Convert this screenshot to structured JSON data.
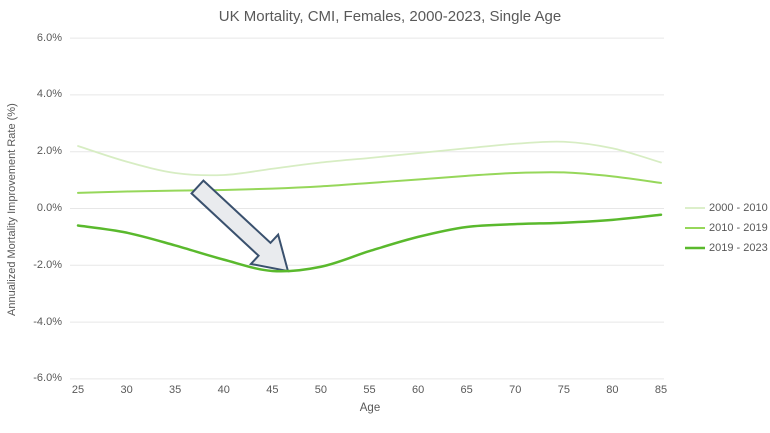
{
  "chart_data": {
    "type": "line",
    "title": "UK Mortality, CMI, Females, 2000-2023, Single Age",
    "xlabel": "Age",
    "ylabel": "Annualized Mortality Improvement Rate (%)",
    "x": [
      25,
      30,
      35,
      40,
      45,
      50,
      55,
      60,
      65,
      70,
      75,
      80,
      85
    ],
    "xtick_labels": [
      "25",
      "30",
      "35",
      "40",
      "45",
      "50",
      "55",
      "60",
      "65",
      "70",
      "75",
      "80",
      "85"
    ],
    "xlim": [
      25,
      85
    ],
    "ylim": [
      -6,
      6
    ],
    "ytick_values": [
      6,
      4,
      2,
      0,
      -2,
      -4,
      -6
    ],
    "ytick_labels": [
      "6.0%",
      "4.0%",
      "2.0%",
      "0.0%",
      "-2.0%",
      "-4.0%",
      "-6.0%"
    ],
    "grid": true,
    "legend_position": "right",
    "series": [
      {
        "name": "2000 - 2010",
        "color": "#d7edc3",
        "stroke_width": 1.75,
        "values": [
          2.2,
          1.65,
          1.25,
          1.18,
          1.4,
          1.62,
          1.78,
          1.95,
          2.12,
          2.28,
          2.35,
          2.12,
          1.62
        ]
      },
      {
        "name": "2010 - 2019",
        "color": "#96d75a",
        "stroke_width": 2,
        "values": [
          0.55,
          0.6,
          0.63,
          0.65,
          0.7,
          0.78,
          0.9,
          1.02,
          1.15,
          1.25,
          1.27,
          1.13,
          0.9
        ]
      },
      {
        "name": "2019 - 2023",
        "color": "#5ab92d",
        "stroke_width": 2.5,
        "values": [
          -0.6,
          -0.85,
          -1.3,
          -1.8,
          -2.2,
          -2.05,
          -1.5,
          -1.0,
          -0.65,
          -0.55,
          -0.5,
          -0.4,
          -0.22
        ]
      }
    ],
    "annotation": {
      "shape": "block-arrow",
      "points_at": {
        "x": 45,
        "y": -2.2
      },
      "fill": "#e9ebee",
      "stroke": "#3a516e"
    }
  },
  "colors": {
    "background": "#ffffff",
    "gridline": "#e7e7e7",
    "text": "#595959"
  }
}
